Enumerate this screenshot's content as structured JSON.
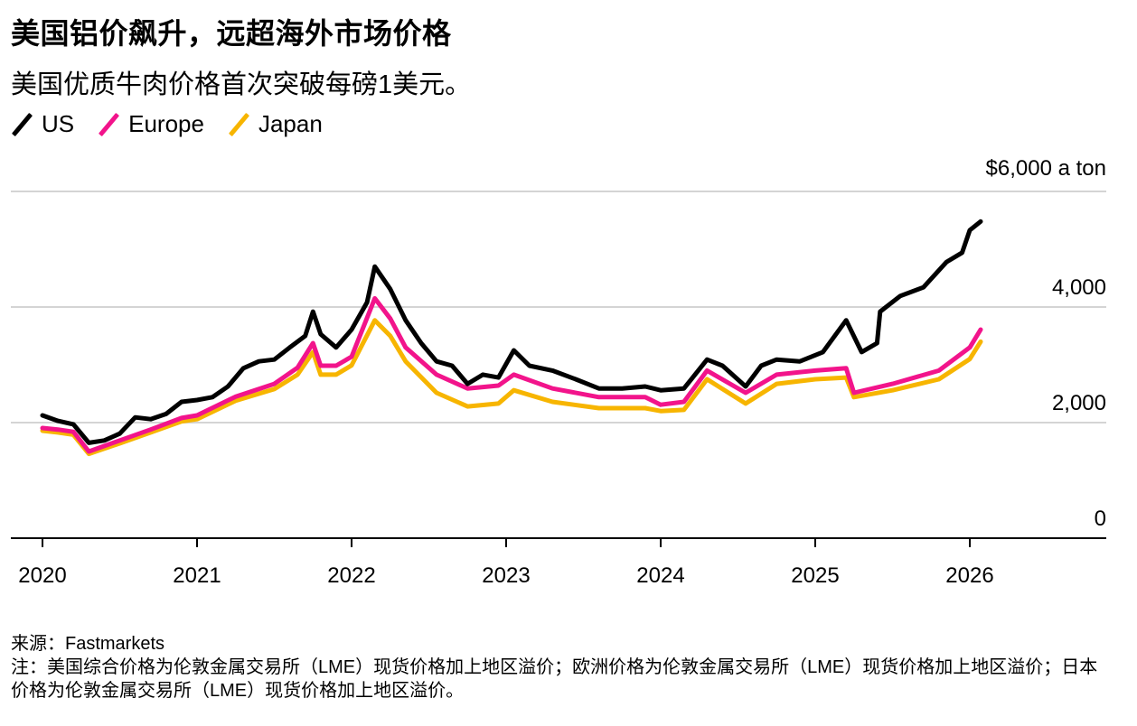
{
  "title": "美国铝价飙升，远超海外市场价格",
  "subtitle": "美国优质牛肉价格首次突破每磅1美元。",
  "source": "来源：Fastmarkets",
  "note": "注：美国综合价格为伦敦金属交易所（LME）现货价格加上地区溢价；欧洲价格为伦敦金属交易所（LME）现货价格加上地区溢价；日本价格为伦敦金属交易所（LME）现货价格加上地区溢价。",
  "chart_data": {
    "type": "line",
    "title": "美国铝价飙升，远超海外市场价格",
    "ylabel": "$6,000 a ton",
    "ylim": [
      0,
      6000
    ],
    "xlim": [
      2019.8,
      2026.9
    ],
    "y_ticks": [
      0,
      2000,
      4000,
      6000
    ],
    "y_tick_labels": [
      "0",
      "2,000",
      "4,000",
      "$6,000",
      "a ton"
    ],
    "x_ticks": [
      2020,
      2021,
      2022,
      2023,
      2024,
      2025,
      2026
    ],
    "x_tick_labels": [
      "2020",
      "2021",
      "2022",
      "2023",
      "2024",
      "2025",
      "2026"
    ],
    "grid": true,
    "legend": "top-left",
    "series": [
      {
        "name": "US",
        "color": "#000000",
        "x": [
          2020.0,
          2020.1,
          2020.2,
          2020.3,
          2020.4,
          2020.5,
          2020.6,
          2020.7,
          2020.8,
          2020.9,
          2021.0,
          2021.1,
          2021.2,
          2021.3,
          2021.4,
          2021.5,
          2021.6,
          2021.7,
          2021.75,
          2021.8,
          2021.9,
          2022.0,
          2022.1,
          2022.15,
          2022.25,
          2022.35,
          2022.45,
          2022.55,
          2022.65,
          2022.75,
          2022.85,
          2022.95,
          2023.05,
          2023.15,
          2023.3,
          2023.45,
          2023.6,
          2023.75,
          2023.9,
          2024.0,
          2024.15,
          2024.3,
          2024.4,
          2024.55,
          2024.65,
          2024.75,
          2024.9,
          2025.05,
          2025.2,
          2025.3,
          2025.4,
          2025.42,
          2025.55,
          2025.7,
          2025.85,
          2025.95,
          2026.0,
          2026.07
        ],
        "y": [
          2125,
          2030,
          1970,
          1650,
          1690,
          1810,
          2090,
          2060,
          2150,
          2360,
          2390,
          2440,
          2625,
          2940,
          3060,
          3090,
          3300,
          3500,
          3920,
          3530,
          3300,
          3610,
          4080,
          4700,
          4310,
          3770,
          3375,
          3060,
          2985,
          2670,
          2830,
          2780,
          3250,
          2985,
          2900,
          2750,
          2590,
          2590,
          2625,
          2560,
          2590,
          3090,
          2985,
          2625,
          2985,
          3090,
          3060,
          3220,
          3770,
          3220,
          3375,
          3920,
          4190,
          4340,
          4780,
          4940,
          5330,
          5480
        ]
      },
      {
        "name": "Europe",
        "color": "#f2148b",
        "x": [
          2020.0,
          2020.1,
          2020.2,
          2020.3,
          2020.5,
          2020.7,
          2020.9,
          2021.0,
          2021.25,
          2021.5,
          2021.65,
          2021.75,
          2021.8,
          2021.9,
          2022.0,
          2022.15,
          2022.25,
          2022.35,
          2022.55,
          2022.75,
          2022.95,
          2023.05,
          2023.3,
          2023.6,
          2023.9,
          2024.0,
          2024.15,
          2024.3,
          2024.55,
          2024.75,
          2025.0,
          2025.2,
          2025.25,
          2025.5,
          2025.8,
          2026.0,
          2026.07
        ],
        "y": [
          1906,
          1880,
          1840,
          1500,
          1690,
          1880,
          2080,
          2125,
          2450,
          2670,
          2950,
          3375,
          2985,
          2985,
          3140,
          4150,
          3800,
          3300,
          2830,
          2590,
          2640,
          2830,
          2590,
          2440,
          2440,
          2310,
          2360,
          2900,
          2515,
          2830,
          2900,
          2940,
          2515,
          2670,
          2900,
          3300,
          3610
        ]
      },
      {
        "name": "Japan",
        "color": "#f7b500",
        "x": [
          2020.0,
          2020.1,
          2020.2,
          2020.3,
          2020.5,
          2020.7,
          2020.9,
          2021.0,
          2021.25,
          2021.5,
          2021.65,
          2021.75,
          2021.8,
          2021.9,
          2022.0,
          2022.15,
          2022.25,
          2022.35,
          2022.55,
          2022.75,
          2022.95,
          2023.05,
          2023.3,
          2023.6,
          2023.9,
          2024.0,
          2024.15,
          2024.3,
          2024.55,
          2024.75,
          2025.0,
          2025.2,
          2025.25,
          2025.5,
          2025.8,
          2026.0,
          2026.07
        ],
        "y": [
          1860,
          1830,
          1790,
          1460,
          1640,
          1830,
          2020,
          2060,
          2380,
          2580,
          2830,
          3220,
          2830,
          2830,
          2990,
          3770,
          3500,
          3060,
          2515,
          2280,
          2330,
          2560,
          2360,
          2250,
          2250,
          2200,
          2220,
          2750,
          2330,
          2670,
          2750,
          2780,
          2440,
          2560,
          2750,
          3100,
          3400
        ]
      }
    ]
  }
}
